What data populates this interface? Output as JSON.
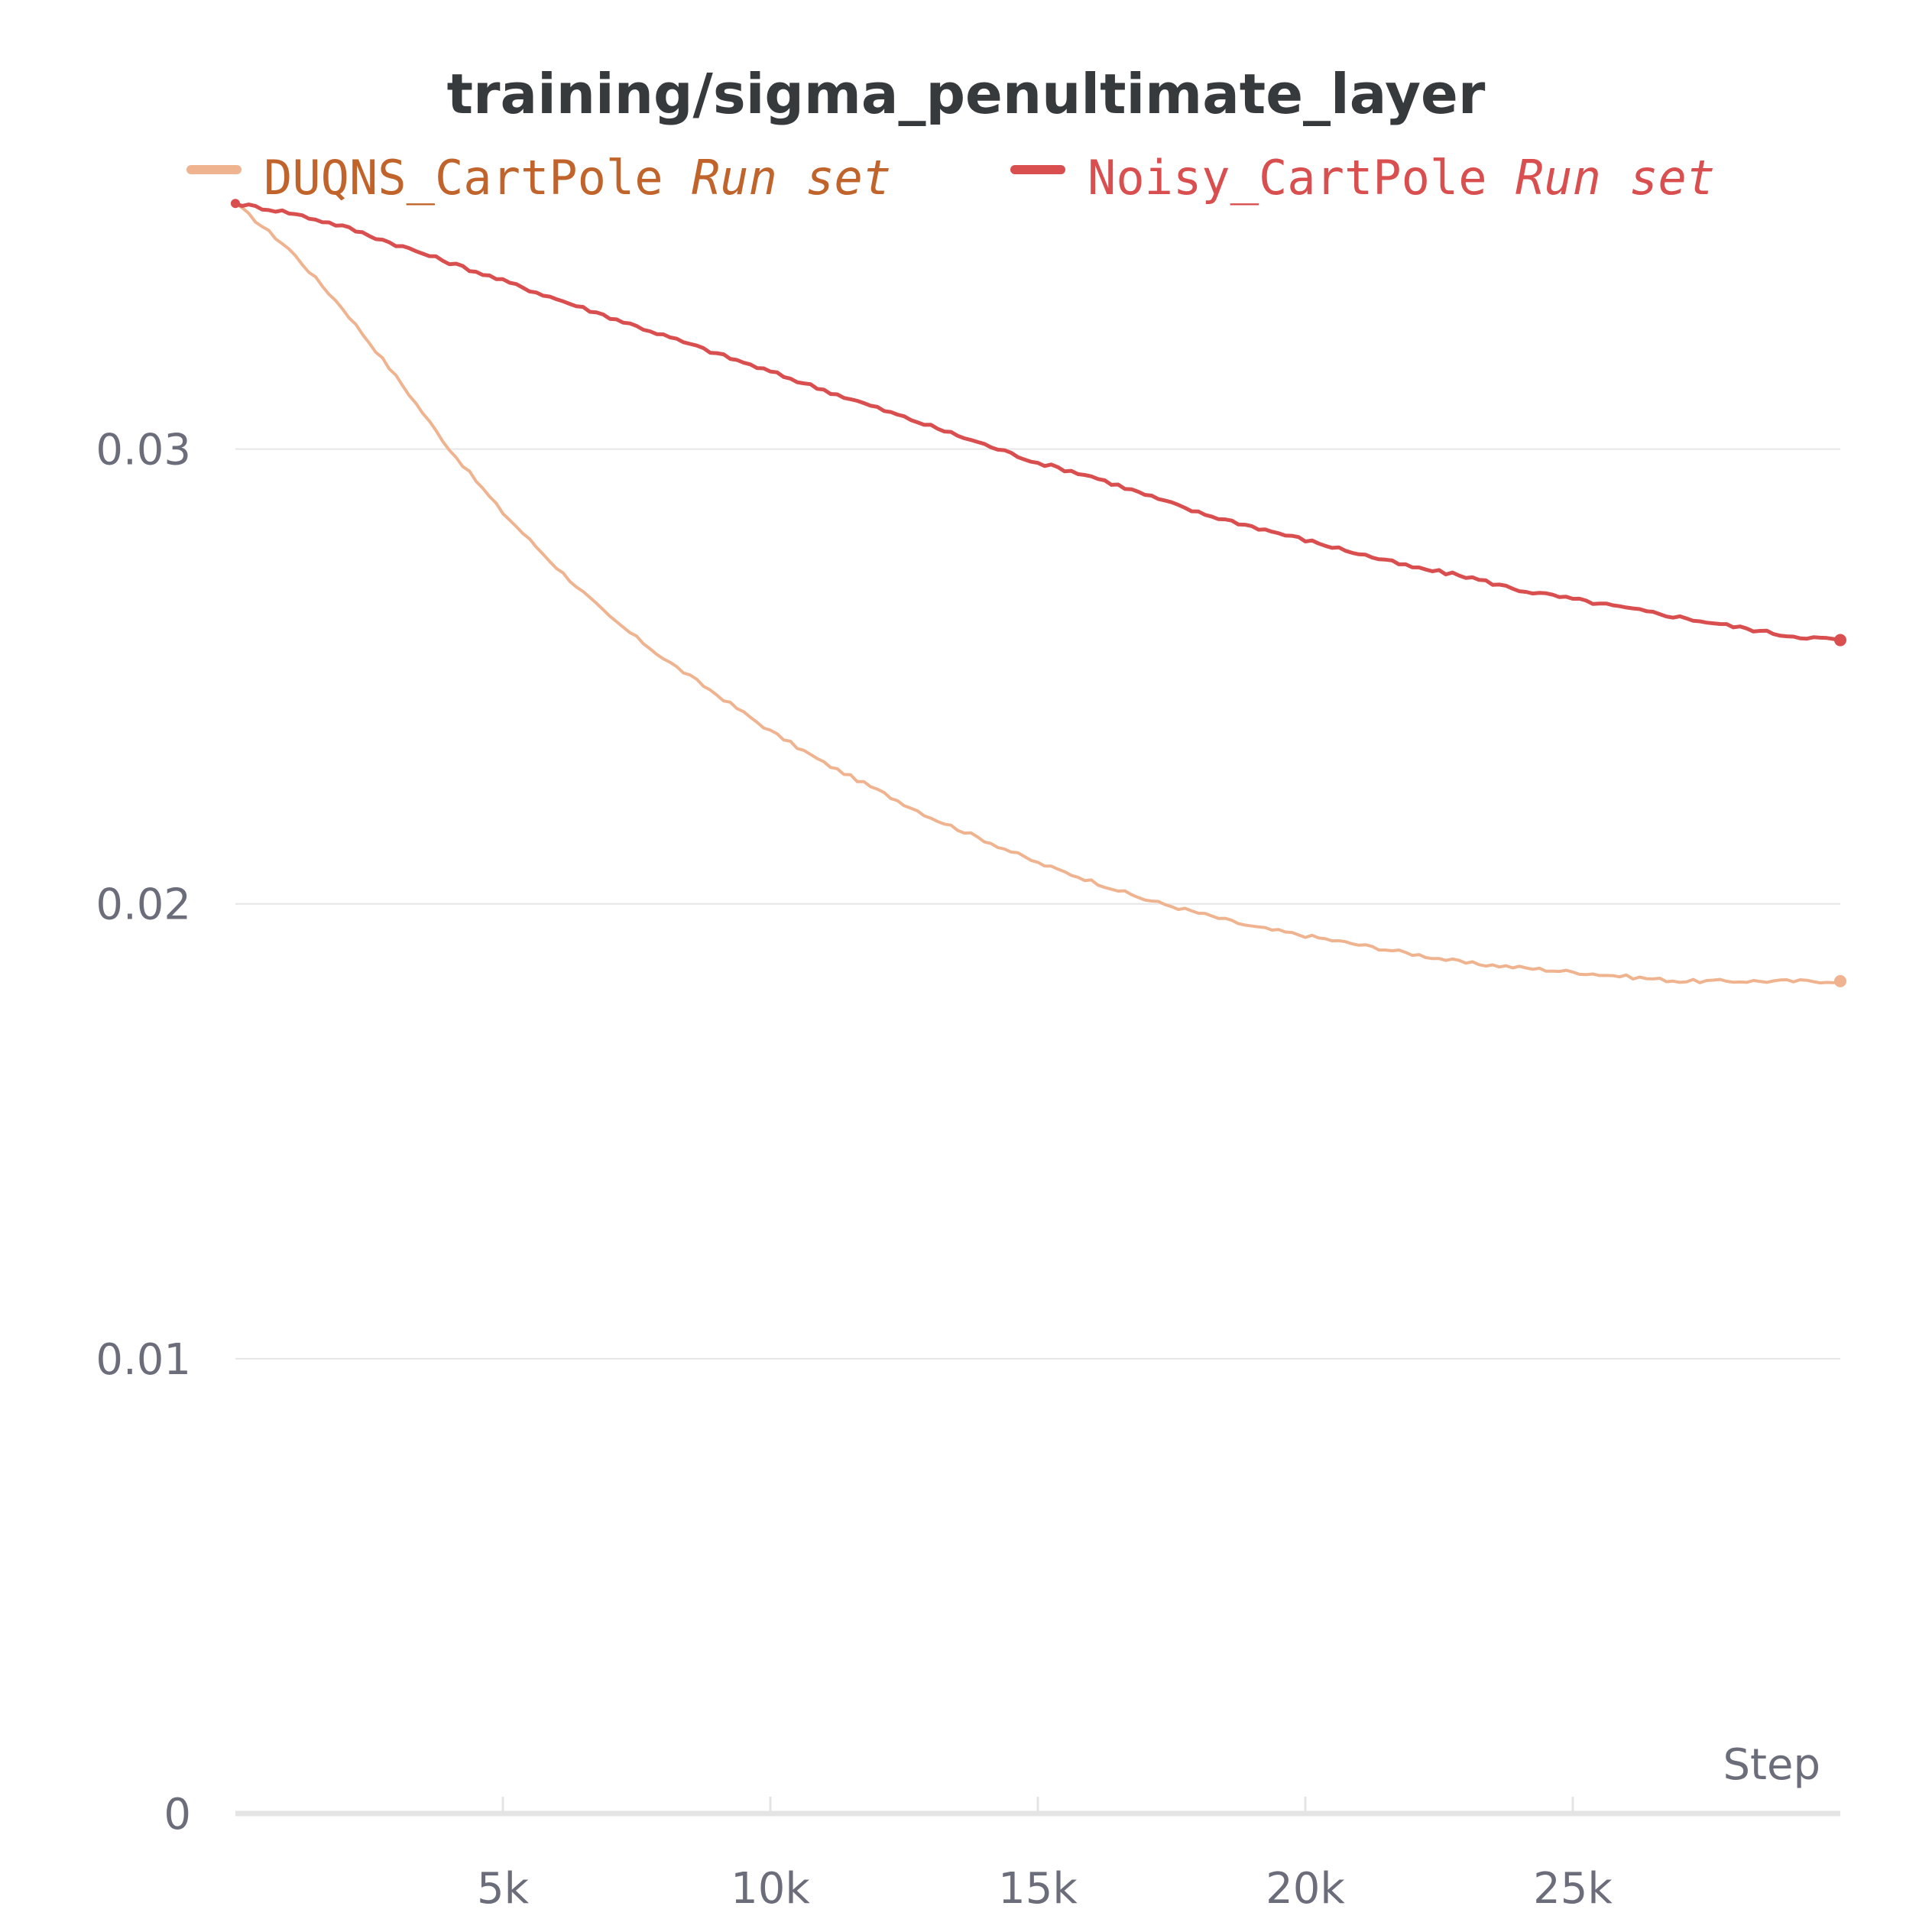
{
  "chart_data": {
    "type": "line",
    "title": "training/sigma_penultimate_layer",
    "xlabel": "Step",
    "ylabel": "",
    "xlim": [
      0,
      30000
    ],
    "ylim": [
      0,
      0.035
    ],
    "xticks": [
      5000,
      10000,
      15000,
      20000,
      25000
    ],
    "xtick_labels": [
      "5k",
      "10k",
      "15k",
      "20k",
      "25k"
    ],
    "yticks": [
      0,
      0.01,
      0.02,
      0.03
    ],
    "ytick_labels": [
      "0",
      "0.01",
      "0.02",
      "0.03"
    ],
    "grid": true,
    "legend_position": "top",
    "series": [
      {
        "name": "DUQNS_CartPole",
        "suffix": "Run set",
        "color": "#efb38f",
        "text_color": "#c0642c",
        "x": [
          0,
          1000,
          2000,
          3000,
          4000,
          5000,
          6000,
          7000,
          8000,
          9000,
          10000,
          11000,
          12000,
          13000,
          14000,
          15000,
          16000,
          17000,
          18000,
          19000,
          20000,
          21000,
          22000,
          23000,
          24000,
          25000,
          26000,
          27000,
          28000,
          29000,
          30000
        ],
        "values": [
          0.0354,
          0.0344,
          0.0331,
          0.0316,
          0.03,
          0.0286,
          0.0274,
          0.0263,
          0.0254,
          0.0246,
          0.0238,
          0.0231,
          0.0225,
          0.0219,
          0.0214,
          0.0209,
          0.0205,
          0.0201,
          0.0198,
          0.0195,
          0.0193,
          0.0191,
          0.0189,
          0.0187,
          0.0186,
          0.0185,
          0.0184,
          0.0183,
          0.0183,
          0.0183,
          0.0183
        ]
      },
      {
        "name": "Noisy_CartPole",
        "suffix": "Run set",
        "color": "#d94f4f",
        "text_color": "#d94f4f",
        "x": [
          0,
          1000,
          2000,
          3000,
          4000,
          5000,
          6000,
          7000,
          8000,
          9000,
          10000,
          11000,
          12000,
          13000,
          14000,
          15000,
          16000,
          17000,
          18000,
          19000,
          20000,
          21000,
          22000,
          23000,
          24000,
          25000,
          26000,
          27000,
          28000,
          29000,
          30000
        ],
        "values": [
          0.0354,
          0.0352,
          0.0349,
          0.0345,
          0.0341,
          0.0337,
          0.0333,
          0.0329,
          0.0325,
          0.0321,
          0.0317,
          0.0313,
          0.0309,
          0.0305,
          0.0301,
          0.0297,
          0.0294,
          0.029,
          0.0286,
          0.0283,
          0.028,
          0.0277,
          0.0274,
          0.0272,
          0.0269,
          0.0267,
          0.0265,
          0.0263,
          0.0261,
          0.0259,
          0.0258
        ]
      }
    ]
  }
}
